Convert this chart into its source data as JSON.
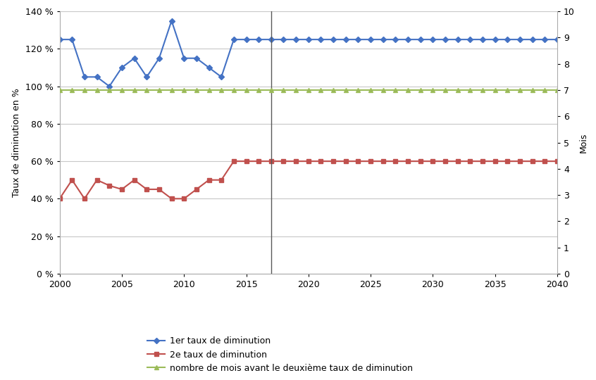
{
  "blue_x": [
    2000,
    2001,
    2002,
    2003,
    2004,
    2005,
    2006,
    2007,
    2008,
    2009,
    2010,
    2011,
    2012,
    2013,
    2014,
    2015,
    2016,
    2017,
    2018,
    2019,
    2020,
    2021,
    2022,
    2023,
    2024,
    2025,
    2026,
    2027,
    2028,
    2029,
    2030,
    2031,
    2032,
    2033,
    2034,
    2035,
    2036,
    2037,
    2038,
    2039,
    2040
  ],
  "blue_y": [
    125,
    125,
    105,
    105,
    100,
    110,
    115,
    105,
    115,
    135,
    115,
    115,
    110,
    105,
    125,
    125,
    125,
    125,
    125,
    125,
    125,
    125,
    125,
    125,
    125,
    125,
    125,
    125,
    125,
    125,
    125,
    125,
    125,
    125,
    125,
    125,
    125,
    125,
    125,
    125,
    125
  ],
  "red_x": [
    2000,
    2001,
    2002,
    2003,
    2004,
    2005,
    2006,
    2007,
    2008,
    2009,
    2010,
    2011,
    2012,
    2013,
    2014,
    2015,
    2016,
    2017,
    2018,
    2019,
    2020,
    2021,
    2022,
    2023,
    2024,
    2025,
    2026,
    2027,
    2028,
    2029,
    2030,
    2031,
    2032,
    2033,
    2034,
    2035,
    2036,
    2037,
    2038,
    2039,
    2040
  ],
  "red_y": [
    40,
    50,
    40,
    50,
    47,
    45,
    50,
    45,
    45,
    40,
    40,
    45,
    50,
    50,
    60,
    60,
    60,
    60,
    60,
    60,
    60,
    60,
    60,
    60,
    60,
    60,
    60,
    60,
    60,
    60,
    60,
    60,
    60,
    60,
    60,
    60,
    60,
    60,
    60,
    60,
    60
  ],
  "green_x": [
    2000,
    2001,
    2002,
    2003,
    2004,
    2005,
    2006,
    2007,
    2008,
    2009,
    2010,
    2011,
    2012,
    2013,
    2014,
    2015,
    2016,
    2017,
    2018,
    2019,
    2020,
    2021,
    2022,
    2023,
    2024,
    2025,
    2026,
    2027,
    2028,
    2029,
    2030,
    2031,
    2032,
    2033,
    2034,
    2035,
    2036,
    2037,
    2038,
    2039,
    2040
  ],
  "green_y_right": [
    7,
    7,
    7,
    7,
    7,
    7,
    7,
    7,
    7,
    7,
    7,
    7,
    7,
    7,
    7,
    7,
    7,
    7,
    7,
    7,
    7,
    7,
    7,
    7,
    7,
    7,
    7,
    7,
    7,
    7,
    7,
    7,
    7,
    7,
    7,
    7,
    7,
    7,
    7,
    7,
    7
  ],
  "vline_x": 2017,
  "blue_color": "#4472C4",
  "red_color": "#C0504D",
  "green_color": "#9BBB59",
  "vline_color": "#595959",
  "grid_color": "#C8C8C8",
  "bg_color": "#FFFFFF",
  "plot_bg_color": "#FFFFFF",
  "ylabel_left": "Taux de diminution en %",
  "ylabel_right": "Mois",
  "ylim_left": [
    0,
    140
  ],
  "ylim_right": [
    0,
    10
  ],
  "xlim": [
    2000,
    2040
  ],
  "yticks_left": [
    0,
    20,
    40,
    60,
    80,
    100,
    120,
    140
  ],
  "yticks_right": [
    0,
    1,
    2,
    3,
    4,
    5,
    6,
    7,
    8,
    9,
    10
  ],
  "xticks": [
    2000,
    2005,
    2010,
    2015,
    2020,
    2025,
    2030,
    2035,
    2040
  ],
  "legend1": "1er taux de diminution",
  "legend2": "2e taux de diminution",
  "legend3": "nombre de mois avant le deuxième taux de diminution",
  "axis_fontsize": 9,
  "tick_fontsize": 9,
  "legend_fontsize": 9
}
